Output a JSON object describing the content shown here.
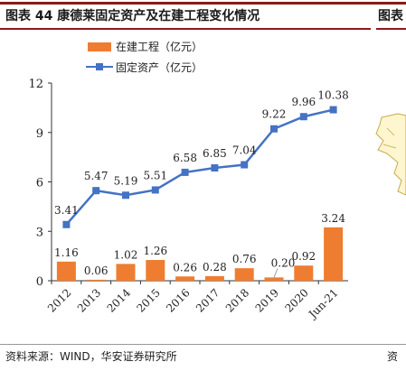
{
  "header": {
    "title": "图表 44 康德莱固定资产及在建工程变化情况",
    "title_right": "图表"
  },
  "footer": {
    "source": "资料来源：WIND，华安证券研究所",
    "source_right": "资"
  },
  "colors": {
    "bar": "#ee7d31",
    "line": "#4472c4",
    "accent_rule": "#8b1a1a"
  },
  "chart_data": {
    "type": "bar",
    "categories": [
      "2012",
      "2013",
      "2014",
      "2015",
      "2016",
      "2017",
      "2018",
      "2019",
      "2020",
      "Jun-21"
    ],
    "series": [
      {
        "name": "在建工程（亿元）",
        "type": "bar",
        "color": "#ee7d31",
        "values": [
          1.16,
          0.06,
          1.02,
          1.26,
          0.26,
          0.28,
          0.76,
          0.2,
          0.92,
          3.24
        ]
      },
      {
        "name": "固定资产（亿元）",
        "type": "line",
        "color": "#4472c4",
        "values": [
          3.41,
          5.47,
          5.19,
          5.51,
          6.58,
          6.85,
          7.04,
          9.22,
          9.96,
          10.38
        ]
      }
    ],
    "bar_labels": [
      "1.16",
      "0.06",
      "1.02",
      "1.26",
      "0.26",
      "0.28",
      "0.76",
      "0.20",
      "0.92",
      "3.24"
    ],
    "line_labels": [
      "3.41",
      "5.47",
      "5.19",
      "5.51",
      "6.58",
      "6.85",
      "7.04",
      "9.22",
      "9.96",
      "10.38"
    ],
    "ylim": [
      0,
      12
    ],
    "yticks": [
      "0",
      "3",
      "6",
      "9",
      "12"
    ],
    "legend_position": "top-left",
    "grid": false
  }
}
